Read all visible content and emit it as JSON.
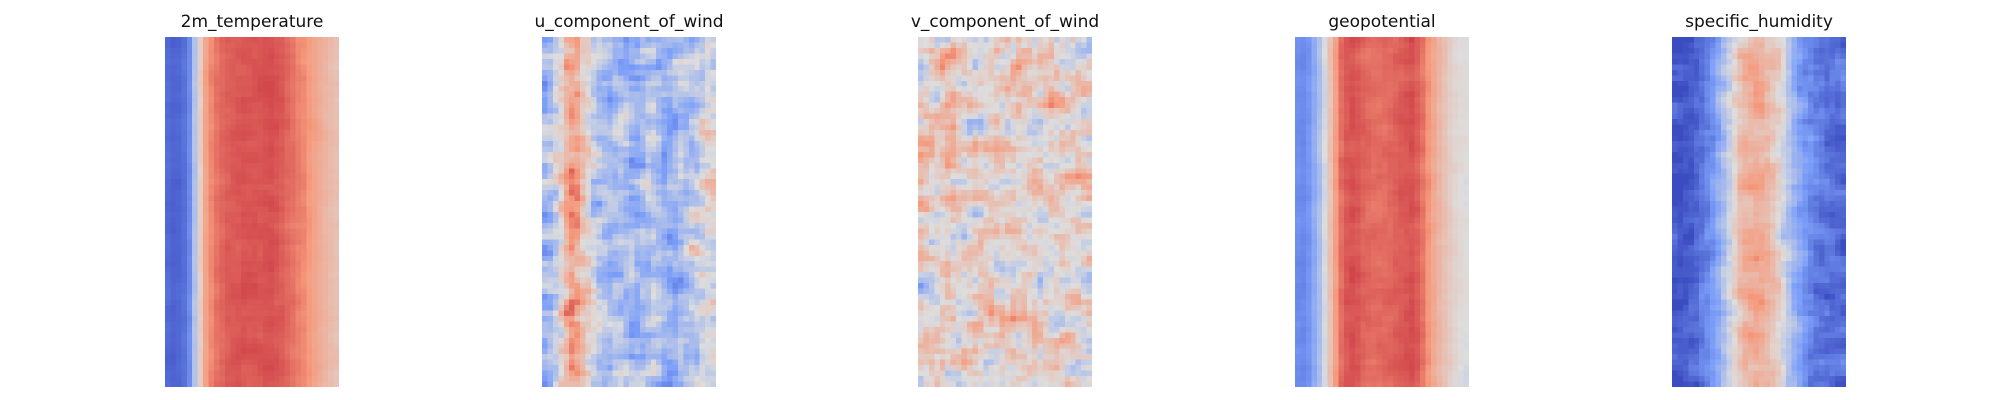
{
  "chart_data": [
    {
      "type": "heatmap",
      "title": "2m_temperature",
      "colormap": "coolwarm",
      "axes": "off",
      "grid": false,
      "legend": "none",
      "grid_shape": [
        64,
        32
      ],
      "pattern": {
        "profile": [
          -0.82,
          -0.86,
          -0.84,
          -0.78,
          -0.62,
          -0.22,
          0.12,
          0.42,
          0.55,
          0.62,
          0.66,
          0.69,
          0.7,
          0.71,
          0.72,
          0.72,
          0.73,
          0.73,
          0.74,
          0.74,
          0.72,
          0.7,
          0.66,
          0.63,
          0.58,
          0.55,
          0.48,
          0.42,
          0.36,
          0.3,
          0.25,
          0.22
        ],
        "noise": 0.05,
        "seed": 11
      }
    },
    {
      "type": "heatmap",
      "title": "u_component_of_wind",
      "colormap": "coolwarm",
      "axes": "off",
      "grid": false,
      "legend": "none",
      "grid_shape": [
        64,
        32
      ],
      "pattern": {
        "profile": [
          -0.35,
          -0.3,
          -0.15,
          0.05,
          0.3,
          0.45,
          0.4,
          0.2,
          0.05,
          -0.1,
          -0.2,
          -0.25,
          -0.3,
          -0.25,
          -0.2,
          -0.25,
          -0.3,
          -0.35,
          -0.3,
          -0.25,
          -0.2,
          -0.25,
          -0.3,
          -0.35,
          -0.3,
          -0.25,
          -0.2,
          -0.15,
          -0.1,
          -0.05,
          0.0,
          0.0
        ],
        "noise": 0.38,
        "seed": 23
      }
    },
    {
      "type": "heatmap",
      "title": "v_component_of_wind",
      "colormap": "coolwarm",
      "axes": "off",
      "grid": false,
      "legend": "none",
      "grid_shape": [
        64,
        32
      ],
      "pattern": {
        "profile": [
          0.1,
          0.12,
          0.1,
          0.08,
          0.1,
          0.12,
          0.1,
          0.08,
          0.1,
          0.12,
          0.1,
          0.08,
          0.1,
          0.12,
          0.1,
          0.08,
          0.1,
          0.12,
          0.1,
          0.08,
          0.1,
          0.12,
          0.1,
          0.08,
          0.1,
          0.12,
          0.1,
          0.08,
          0.1,
          0.12,
          0.1,
          0.08
        ],
        "noise": 0.45,
        "seed": 37
      }
    },
    {
      "type": "heatmap",
      "title": "geopotential",
      "colormap": "coolwarm",
      "axes": "off",
      "grid": false,
      "legend": "none",
      "grid_shape": [
        64,
        32
      ],
      "pattern": {
        "profile": [
          -0.6,
          -0.62,
          -0.55,
          -0.4,
          -0.25,
          -0.05,
          0.2,
          0.45,
          0.65,
          0.72,
          0.74,
          0.72,
          0.68,
          0.66,
          0.64,
          0.64,
          0.65,
          0.66,
          0.68,
          0.7,
          0.72,
          0.74,
          0.7,
          0.62,
          0.5,
          0.38,
          0.28,
          0.2,
          0.12,
          0.06,
          0.02,
          0.0
        ],
        "noise": 0.06,
        "seed": 41
      }
    },
    {
      "type": "heatmap",
      "title": "specific_humidity",
      "colormap": "coolwarm",
      "axes": "off",
      "grid": false,
      "legend": "none",
      "grid_shape": [
        64,
        32
      ],
      "pattern": {
        "profile": [
          -0.95,
          -0.95,
          -0.92,
          -0.88,
          -0.82,
          -0.75,
          -0.65,
          -0.55,
          -0.4,
          -0.25,
          -0.1,
          0.05,
          0.2,
          0.3,
          0.35,
          0.38,
          0.35,
          0.28,
          0.2,
          0.1,
          -0.05,
          -0.2,
          -0.35,
          -0.45,
          -0.55,
          -0.62,
          -0.68,
          -0.72,
          -0.75,
          -0.78,
          -0.8,
          -0.82
        ],
        "noise": 0.22,
        "seed": 53
      }
    }
  ]
}
